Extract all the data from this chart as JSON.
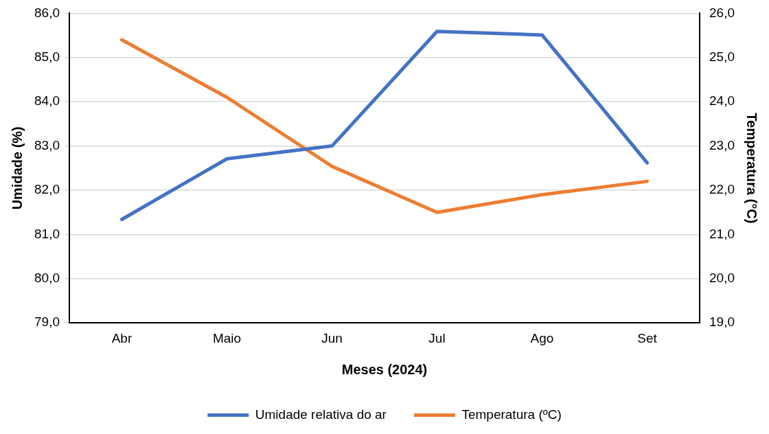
{
  "chart_data": {
    "type": "line",
    "xlabel": "Meses (2024)",
    "ylabel": "Umidade (%)",
    "y2label": "Temperatura (°C)",
    "categories": [
      "Abr",
      "Maio",
      "Jun",
      "Jul",
      "Ago",
      "Set"
    ],
    "series": [
      {
        "name": "Umidade relativa do ar",
        "color": "#4472c4",
        "values": [
          81.34,
          82.71,
          83.0,
          85.59,
          85.51,
          82.62
        ]
      },
      {
        "name": "Temperatura (ºC)",
        "color": "#ed7d31",
        "axis": "y2",
        "values": [
          25.4,
          24.1,
          22.54,
          21.5,
          21.9,
          22.2
        ]
      }
    ],
    "ylim": [
      79,
      86
    ],
    "yticks": [
      {
        "value": 79,
        "label": "79,0"
      },
      {
        "value": 80,
        "label": "80,0"
      },
      {
        "value": 81,
        "label": "81,0"
      },
      {
        "value": 82,
        "label": "82,0"
      },
      {
        "value": 83,
        "label": "83,0"
      },
      {
        "value": 84,
        "label": "84,0"
      },
      {
        "value": 85,
        "label": "85,0"
      },
      {
        "value": 86,
        "label": "86,0"
      }
    ],
    "y2lim": [
      19,
      26
    ],
    "y2ticks": [
      {
        "value": 19,
        "label": "19,0"
      },
      {
        "value": 20,
        "label": "20,0"
      },
      {
        "value": 21,
        "label": "21,0"
      },
      {
        "value": 22,
        "label": "22,0"
      },
      {
        "value": 23,
        "label": "23,0"
      },
      {
        "value": 24,
        "label": "24,0"
      },
      {
        "value": 25,
        "label": "25,0"
      },
      {
        "value": 26,
        "label": "26,0"
      }
    ],
    "grid": "y",
    "legend": "bottom",
    "marker": "none",
    "line_style": "solid"
  }
}
